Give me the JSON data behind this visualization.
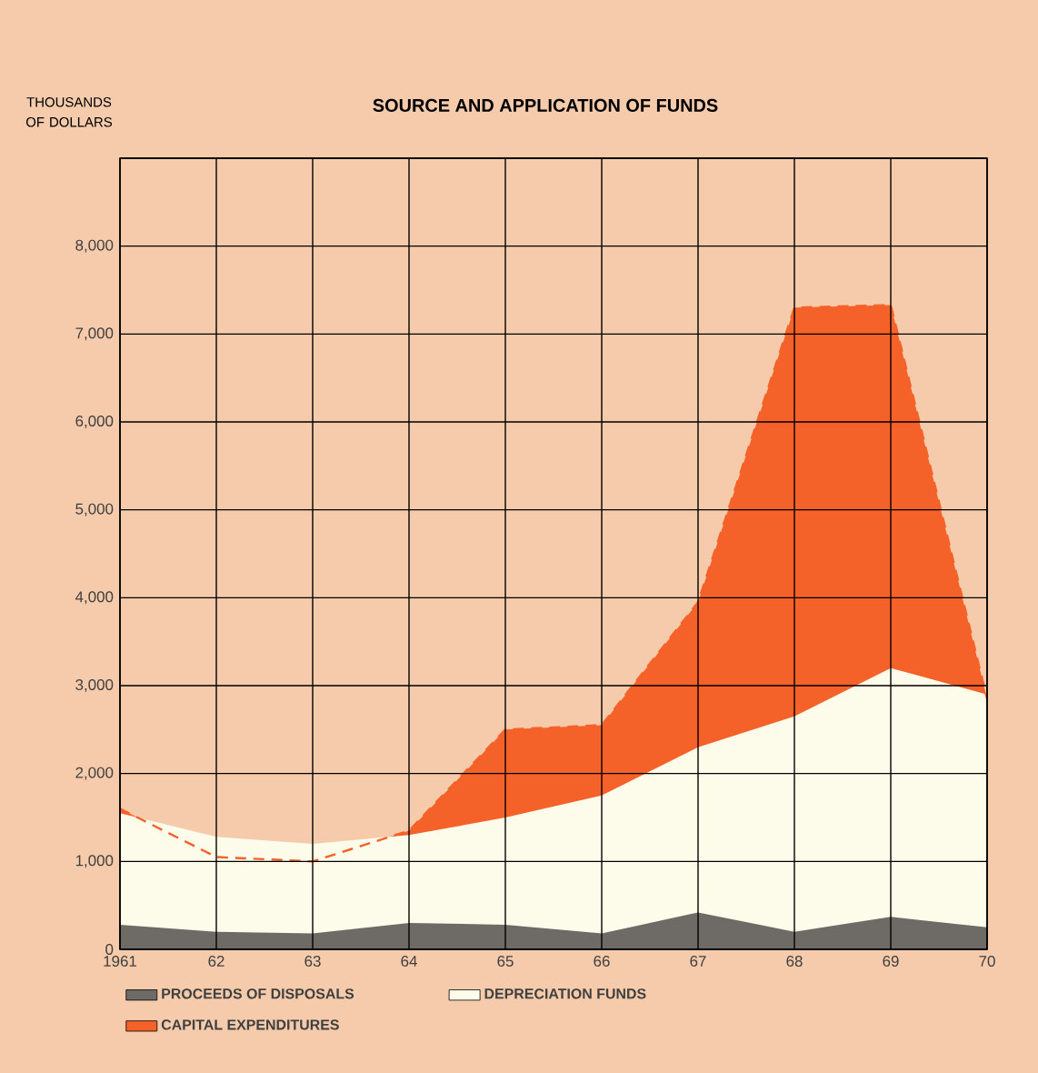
{
  "chart_data": {
    "type": "area",
    "title": "SOURCE AND APPLICATION OF FUNDS",
    "ylabel": "THOUSANDS OF DOLLARS",
    "x": [
      1961,
      1962,
      1963,
      1964,
      1965,
      1966,
      1967,
      1968,
      1969,
      1970
    ],
    "series": [
      {
        "name": "CAPITAL EXPENDITURES",
        "color": "#f4622a",
        "line_style": "dashed",
        "values": [
          1600,
          1050,
          1000,
          1350,
          2500,
          2550,
          3950,
          7300,
          7330,
          2850
        ]
      },
      {
        "name": "DEPRECIATION FUNDS",
        "color": "#fdfbe9",
        "values": [
          1550,
          1280,
          1200,
          1300,
          1500,
          1750,
          2300,
          2650,
          3200,
          2900
        ]
      },
      {
        "name": "PROCEEDS OF DISPOSALS",
        "color": "#6e6a66",
        "values": [
          280,
          200,
          180,
          300,
          280,
          180,
          420,
          200,
          370,
          250
        ]
      }
    ],
    "xlim": [
      1961,
      1970
    ],
    "xticks": [
      1961,
      {
        "value": 1962,
        "label": "62"
      },
      {
        "value": 1963,
        "label": "63"
      },
      {
        "value": 1964,
        "label": "64"
      },
      {
        "value": 1965,
        "label": "65"
      },
      {
        "value": 1966,
        "label": "66"
      },
      {
        "value": 1967,
        "label": "67"
      },
      {
        "value": 1968,
        "label": "68"
      },
      {
        "value": 1969,
        "label": "69"
      },
      {
        "value": 1970,
        "label": "70"
      }
    ],
    "ylim": [
      0,
      9000
    ],
    "yticks": [
      0,
      {
        "value": 1000,
        "label": "1,000"
      },
      {
        "value": 2000,
        "label": "2,000"
      },
      {
        "value": 3000,
        "label": "3,000"
      },
      {
        "value": 4000,
        "label": "4,000"
      },
      {
        "value": 5000,
        "label": "5,000"
      },
      {
        "value": 6000,
        "label": "6,000"
      },
      {
        "value": 7000,
        "label": "7,000"
      },
      {
        "value": 8000,
        "label": "8,000"
      },
      {
        "value": 9000,
        "label": null
      }
    ],
    "grid": true,
    "legend": "bottom"
  }
}
